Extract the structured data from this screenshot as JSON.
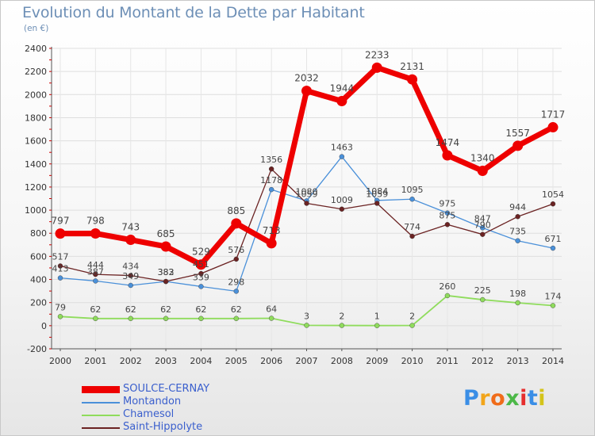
{
  "title": "Evolution du Montant de la Dette par Habitant",
  "subtitle": "(en €)",
  "logo": {
    "text": "Proxiti",
    "colors": [
      "#3a8ee6",
      "#f2a51a",
      "#f06c1a",
      "#4cb848",
      "#e62e2e",
      "#3a8ee6",
      "#d4c41a"
    ]
  },
  "chart_data": {
    "type": "line",
    "title": "Evolution du Montant de la Dette par Habitant",
    "ylabel": "(en €)",
    "xlabel": "",
    "ylim": [
      -200,
      2400
    ],
    "yticks": [
      -200,
      0,
      200,
      400,
      600,
      800,
      1000,
      1200,
      1400,
      1600,
      1800,
      2000,
      2200,
      2400
    ],
    "grid": true,
    "legend_position": "bottom-left",
    "x": [
      "2000",
      "2001",
      "2002",
      "2003",
      "2004",
      "2005",
      "2006",
      "2007",
      "2008",
      "2009",
      "2010",
      "2011",
      "2012",
      "2013",
      "2014"
    ],
    "series": [
      {
        "name": "SOULCE-CERNAY",
        "color": "#ee0000",
        "values": [
          797,
          798,
          743,
          685,
          529,
          885,
          713,
          2032,
          1944,
          2233,
          2131,
          1474,
          1340,
          1557,
          1717
        ]
      },
      {
        "name": "Montandon",
        "color": "#4a90d9",
        "values": [
          413,
          387,
          349,
          382,
          339,
          298,
          1178,
          1080,
          1463,
          1084,
          1095,
          975,
          847,
          735,
          671
        ]
      },
      {
        "name": "Chamesol",
        "color": "#8fdc5c",
        "values": [
          79,
          62,
          62,
          62,
          62,
          62,
          64,
          3,
          2,
          1,
          2,
          260,
          225,
          198,
          174
        ]
      },
      {
        "name": "Saint-Hippolyte",
        "color": "#6b2323",
        "values": [
          517,
          444,
          434,
          383,
          451,
          576,
          1356,
          1059,
          1009,
          1059,
          774,
          875,
          790,
          944,
          1054
        ]
      }
    ],
    "data_labels": [
      [
        "797",
        "798",
        "743",
        "685",
        "529",
        "885",
        "713",
        "2032",
        "1944",
        "2233",
        "2131",
        "1474",
        "1340",
        "1557",
        "1717"
      ],
      [
        "413",
        "387",
        "349",
        "382",
        "339",
        "298",
        "1178",
        "1080",
        "1463",
        "1084",
        "1095",
        "975",
        "847",
        "735",
        "671"
      ],
      [
        "79",
        "62",
        "62",
        "62",
        "62",
        "62",
        "64",
        "3",
        "2",
        "1",
        "2",
        "260",
        "225",
        "198",
        "174"
      ],
      [
        "517",
        "444",
        "434",
        "383",
        "451",
        "576",
        "1356",
        "1059",
        "1009",
        "1059",
        "774",
        "875",
        "790",
        "944",
        "1054"
      ]
    ]
  }
}
